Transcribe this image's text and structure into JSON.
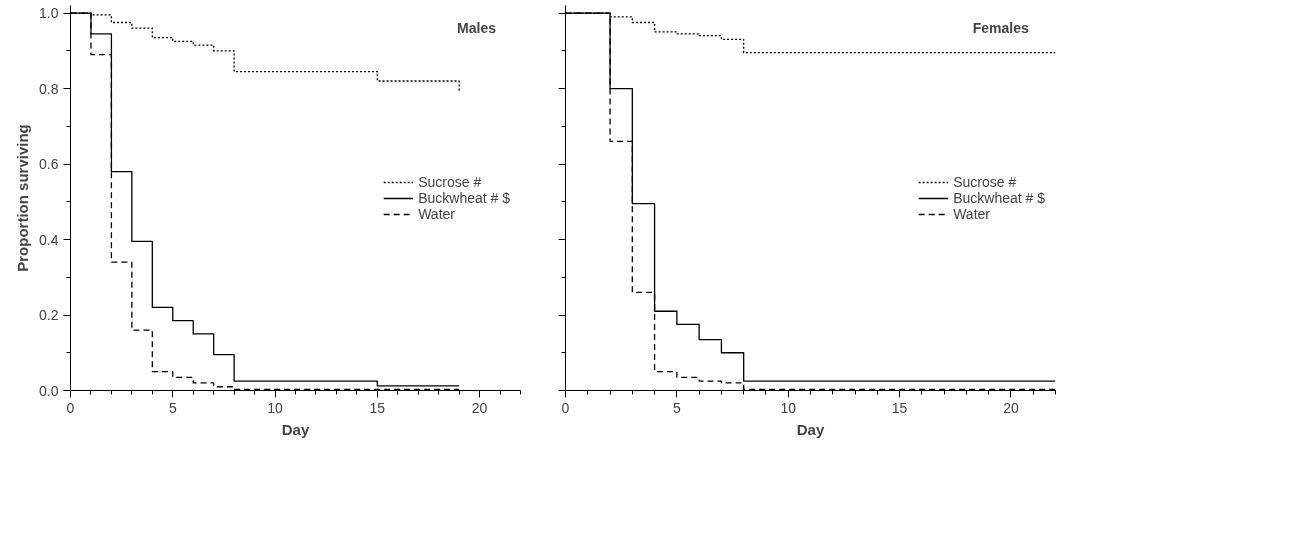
{
  "chart_data": [
    {
      "type": "step",
      "xlabel": "Day",
      "ylabel": "Proportion surviving",
      "annotations": [
        "Males"
      ],
      "xlim": [
        0,
        22
      ],
      "ylim": [
        0,
        1.02
      ],
      "xticks": [
        0,
        5,
        10,
        15,
        20
      ],
      "yticks": [
        {
          "value": 0,
          "label": "0.0"
        },
        0.2,
        0.4,
        0.6,
        0.8,
        {
          "value": 1,
          "label": "1.0"
        }
      ],
      "legend": "right",
      "grid": false,
      "series": [
        {
          "name": "Sucrose #",
          "color": "#000000",
          "line_style": "dotted",
          "x": [
            0,
            1,
            2,
            3,
            4,
            5,
            6,
            7,
            8,
            15,
            19
          ],
          "values": [
            1.0,
            0.995,
            0.975,
            0.96,
            0.935,
            0.925,
            0.915,
            0.9,
            0.845,
            0.82,
            0.79
          ]
        },
        {
          "name": "Buckwheat # $",
          "color": "#000000",
          "line_style": "solid",
          "x": [
            0,
            1,
            2,
            3,
            4,
            5,
            6,
            7,
            8,
            15,
            19
          ],
          "values": [
            1.0,
            0.945,
            0.58,
            0.395,
            0.22,
            0.185,
            0.15,
            0.095,
            0.025,
            0.012,
            0.012
          ]
        },
        {
          "name": "Water",
          "color": "#000000",
          "line_style": "dashed",
          "x": [
            0,
            1,
            2,
            3,
            4,
            5,
            6,
            7,
            8,
            19
          ],
          "values": [
            1.0,
            0.89,
            0.34,
            0.16,
            0.05,
            0.035,
            0.02,
            0.01,
            0.003,
            0.003
          ]
        }
      ]
    },
    {
      "type": "step",
      "xlabel": "Day",
      "annotations": [
        "Females"
      ],
      "xlim": [
        0,
        22
      ],
      "ylim": [
        0,
        1.02
      ],
      "xticks": [
        0,
        5,
        10,
        15,
        20
      ],
      "yticks": [
        0.0,
        0.2,
        0.4,
        0.6,
        0.8,
        1.0
      ],
      "tick_labels": "x",
      "legend": "right",
      "grid": false,
      "series": [
        {
          "name": "Sucrose #",
          "color": "#000000",
          "line_style": "dotted",
          "x": [
            0,
            2,
            3,
            4,
            5,
            6,
            7,
            8,
            22
          ],
          "values": [
            1.0,
            0.99,
            0.975,
            0.95,
            0.945,
            0.94,
            0.93,
            0.895,
            0.895
          ]
        },
        {
          "name": "Buckwheat # $",
          "color": "#000000",
          "line_style": "solid",
          "x": [
            0,
            2,
            3,
            4,
            5,
            6,
            7,
            8,
            22
          ],
          "values": [
            1.0,
            0.8,
            0.495,
            0.21,
            0.175,
            0.135,
            0.1,
            0.025,
            0.025
          ]
        },
        {
          "name": "Water",
          "color": "#000000",
          "line_style": "dashed",
          "x": [
            0,
            2,
            3,
            4,
            5,
            6,
            7,
            8,
            22
          ],
          "values": [
            1.0,
            0.66,
            0.26,
            0.05,
            0.035,
            0.025,
            0.02,
            0.003,
            0.003
          ]
        }
      ]
    }
  ]
}
